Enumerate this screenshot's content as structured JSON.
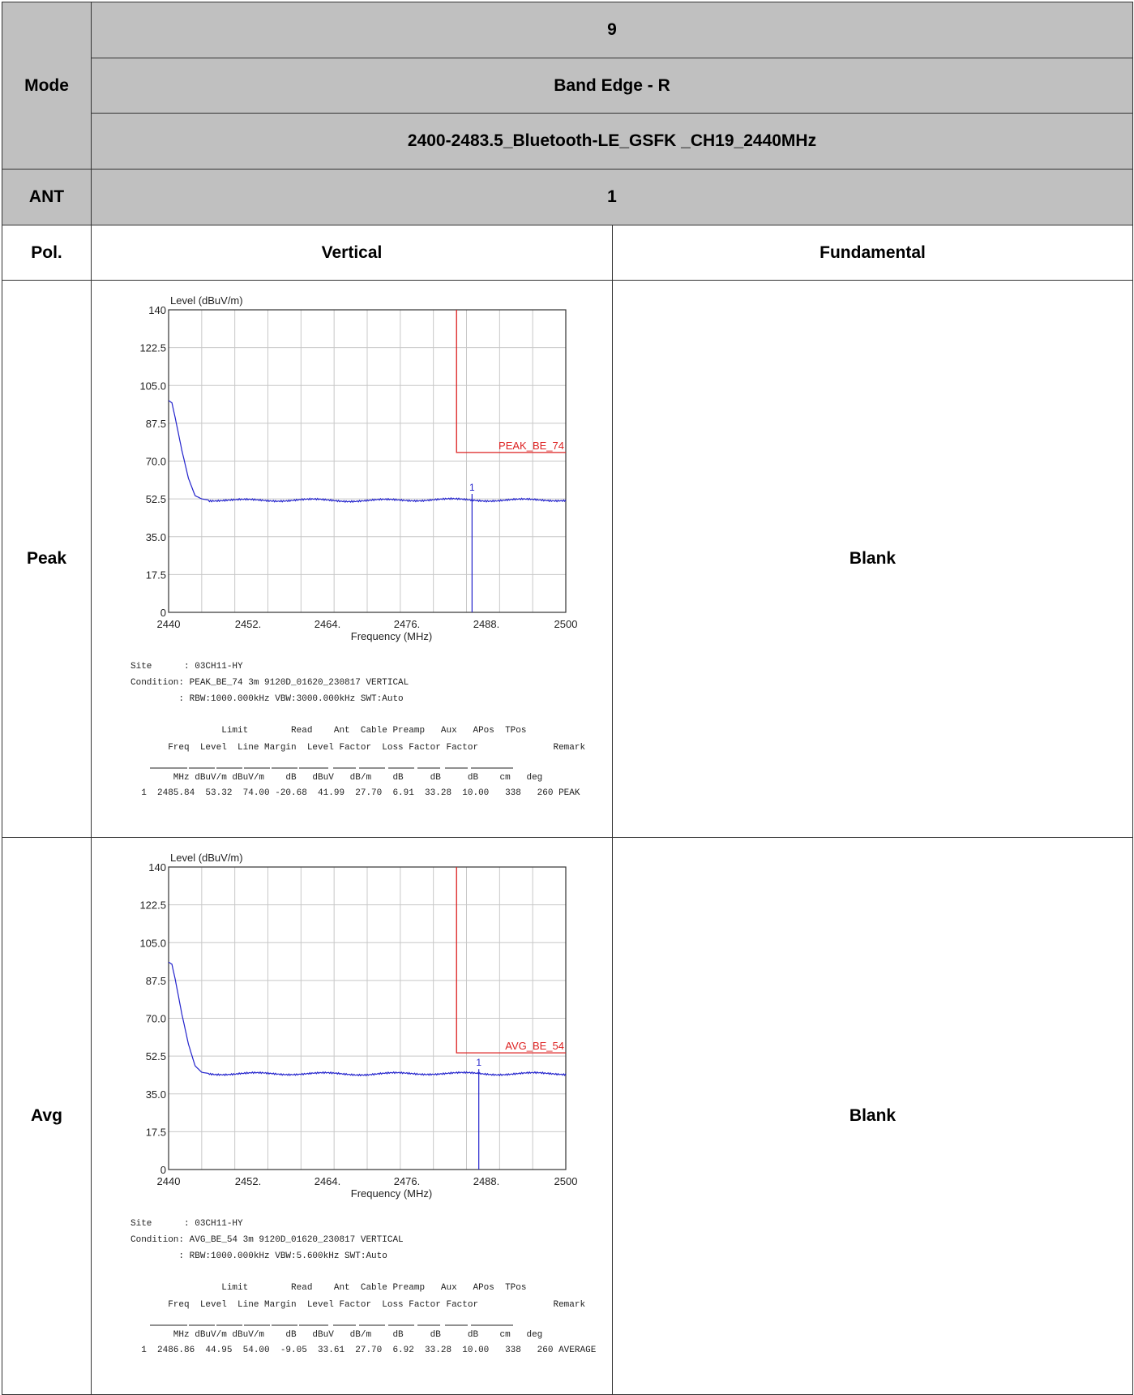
{
  "header": {
    "mode_label": "Mode",
    "mode_values": [
      "9",
      "Band Edge - R",
      "2400-2483.5_Bluetooth-LE_GSFK _CH19_2440MHz"
    ],
    "ant_label": "ANT",
    "ant_value": "1",
    "pol_label": "Pol.",
    "pol_value": "Vertical",
    "fundamental_label": "Fundamental"
  },
  "rows": [
    {
      "label": "Peak",
      "blank": "Blank",
      "site": "Site      : 03CH11-HY",
      "condition": "Condition: PEAK_BE_74 3m 9120D_01620_230817 VERTICAL",
      "settings": "         : RBW:1000.000kHz VBW:3000.000kHz SWT:Auto",
      "hdr1": "                 Limit        Read    Ant  Cable Preamp   Aux   APos  TPos",
      "hdr2": "       Freq  Level  Line Margin  Level Factor  Loss Factor Factor              Remark",
      "units": "        MHz dBuV/m dBuV/m    dB   dBuV   dB/m    dB     dB     dB    cm   deg",
      "data": "  1  2485.84  53.32  74.00 -20.68  41.99  27.70  6.91  33.28  10.00   338   260 PEAK"
    },
    {
      "label": "Avg",
      "blank": "Blank",
      "site": "Site      : 03CH11-HY",
      "condition": "Condition: AVG_BE_54 3m 9120D_01620_230817 VERTICAL",
      "settings": "         : RBW:1000.000kHz VBW:5.600kHz SWT:Auto",
      "hdr1": "                 Limit        Read    Ant  Cable Preamp   Aux   APos  TPos",
      "hdr2": "       Freq  Level  Line Margin  Level Factor  Loss Factor Factor              Remark",
      "units": "        MHz dBuV/m dBuV/m    dB   dBuV   dB/m    dB     dB     dB    cm   deg",
      "data": "  1  2486.86  44.95  54.00  -9.05  33.61  27.70  6.92  33.28  10.00   338   260 AVERAGE"
    }
  ],
  "chart_data": [
    {
      "type": "line",
      "ylabel": "Level (dBuV/m)",
      "xlabel": "Frequency (MHz)",
      "xlim": [
        2440,
        2500
      ],
      "ylim": [
        0,
        140
      ],
      "x_ticks": [
        "2440",
        "2452.",
        "2464.",
        "2476.",
        "2488.",
        "2500"
      ],
      "y_ticks": [
        "0",
        "17.5",
        "35.0",
        "52.5",
        "70.0",
        "87.5",
        "105.0",
        "122.5",
        "140"
      ],
      "limit_label": "PEAK_BE_74",
      "limit_level": 74,
      "limit_start_freq": 2483.5,
      "marker_label": "1",
      "marker": {
        "freq": 2485.84,
        "level": 53.32
      },
      "series": [
        {
          "x": [
            2440,
            2440.5,
            2441,
            2442,
            2443,
            2444,
            2445,
            2446,
            2447,
            2450,
            2460,
            2470,
            2480,
            2490,
            2500
          ],
          "values": [
            98,
            97,
            90,
            75,
            62,
            54,
            52.5,
            52,
            52,
            51.8,
            52,
            51.7,
            52.2,
            51.9,
            52.1
          ]
        }
      ],
      "colors": {
        "trace": "#2222cc",
        "limit": "#dd2222",
        "grid": "#c8c8c8"
      }
    },
    {
      "type": "line",
      "ylabel": "Level (dBuV/m)",
      "xlabel": "Frequency (MHz)",
      "xlim": [
        2440,
        2500
      ],
      "ylim": [
        0,
        140
      ],
      "x_ticks": [
        "2440",
        "2452.",
        "2464.",
        "2476.",
        "2488.",
        "2500"
      ],
      "y_ticks": [
        "0",
        "17.5",
        "35.0",
        "52.5",
        "70.0",
        "87.5",
        "105.0",
        "122.5",
        "140"
      ],
      "limit_label": "AVG_BE_54",
      "limit_level": 54,
      "limit_start_freq": 2483.5,
      "marker_label": "1",
      "marker": {
        "freq": 2486.86,
        "level": 44.95
      },
      "series": [
        {
          "x": [
            2440,
            2440.5,
            2441,
            2442,
            2443,
            2444,
            2445,
            2446,
            2447,
            2450,
            2460,
            2470,
            2480,
            2490,
            2500
          ],
          "values": [
            96,
            95,
            88,
            72,
            58,
            48,
            45,
            44.5,
            44.4,
            44.3,
            44.4,
            44.2,
            44.5,
            44.3,
            44.4
          ]
        }
      ],
      "colors": {
        "trace": "#2222cc",
        "limit": "#dd2222",
        "grid": "#c8c8c8"
      }
    }
  ]
}
